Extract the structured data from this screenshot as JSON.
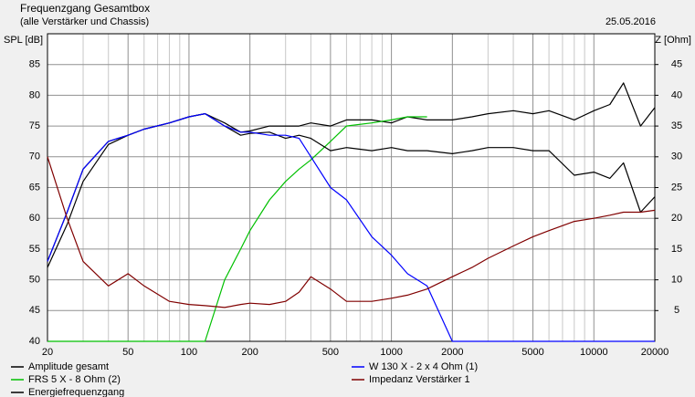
{
  "chart_data": {
    "type": "line",
    "title": "Frequenzgang Gesamtbox",
    "subtitle": "(alle Verstärker und Chassis)",
    "date": "25.05.2016",
    "ylabel": "SPL [dB]",
    "y2label": "Z [Ohm]",
    "xscale": "log",
    "grid": true,
    "x": [
      20,
      25,
      30,
      40,
      50,
      60,
      80,
      100,
      120,
      150,
      180,
      200,
      250,
      300,
      350,
      400,
      500,
      600,
      800,
      1000,
      1200,
      1500,
      2000,
      2500,
      3000,
      4000,
      5000,
      6000,
      8000,
      10000,
      12000,
      14000,
      17000,
      20000
    ],
    "xlim": [
      20,
      20000
    ],
    "xticks": [
      20,
      50,
      100,
      200,
      500,
      1000,
      2000,
      5000,
      10000,
      20000
    ],
    "xminorticks": [
      30,
      40,
      60,
      70,
      80,
      90,
      300,
      400,
      600,
      700,
      800,
      900,
      3000,
      4000,
      6000,
      7000,
      8000,
      9000
    ],
    "ylim": [
      40,
      90
    ],
    "yticks": [
      40,
      45,
      50,
      55,
      60,
      65,
      70,
      75,
      80,
      85
    ],
    "y2lim": [
      0,
      50
    ],
    "y2ticks": [
      5,
      10,
      15,
      20,
      25,
      30,
      35,
      40,
      45
    ],
    "series": [
      {
        "name": "Amplitude gesamt",
        "color": "#000000",
        "values": [
          53,
          61,
          68,
          72.5,
          73.5,
          74.5,
          75.5,
          76.5,
          77,
          75.5,
          74,
          74.2,
          75,
          75,
          75,
          75.5,
          75,
          76,
          76,
          75.5,
          76.5,
          76,
          76,
          76.5,
          77,
          77.5,
          77,
          77.5,
          76,
          77.5,
          78.5,
          82,
          75,
          78
        ]
      },
      {
        "name": "FRS 5 X - 8 Ohm (2)",
        "color": "#00c000",
        "values": [
          40,
          40,
          40,
          40,
          40,
          40,
          40,
          40,
          40,
          50,
          55,
          58,
          63,
          66,
          68,
          69.5,
          72.5,
          75,
          75.5,
          76,
          76.5,
          76.5,
          null,
          null,
          null,
          null,
          null,
          null,
          null,
          null,
          null,
          null,
          null,
          null
        ]
      },
      {
        "name": "Energiefrequenzgang",
        "color": "#000000",
        "values": [
          52,
          59,
          66,
          72,
          73.5,
          74.5,
          75.5,
          76.5,
          77,
          75,
          73.5,
          73.8,
          74,
          73,
          73.5,
          73,
          71,
          71.5,
          71,
          71.5,
          71,
          71,
          70.5,
          71,
          71.5,
          71.5,
          71,
          71,
          67,
          67.5,
          66.5,
          69,
          61,
          63.5
        ]
      },
      {
        "name": "W 130 X - 2 x 4 Ohm (1)",
        "color": "#0000ff",
        "values": [
          53,
          61,
          68,
          72.5,
          73.5,
          74.5,
          75.5,
          76.5,
          77,
          75,
          74,
          74,
          73.5,
          73.5,
          73,
          70,
          65,
          63,
          57,
          54,
          51,
          49,
          40,
          40,
          40,
          40,
          40,
          40,
          40,
          40,
          40,
          40,
          40,
          40
        ]
      },
      {
        "name": "Impedanz Verstärker 1",
        "color": "#800000",
        "axis": "y2",
        "values": [
          30,
          20,
          13,
          9,
          11,
          9,
          6.5,
          6,
          5.8,
          5.5,
          6,
          6.2,
          6,
          6.5,
          8,
          10.5,
          8.5,
          6.5,
          6.5,
          7,
          7.5,
          8.5,
          10.5,
          12,
          13.5,
          15.5,
          17,
          18,
          19.5,
          20,
          20.5,
          21,
          21,
          21.3
        ]
      }
    ]
  }
}
